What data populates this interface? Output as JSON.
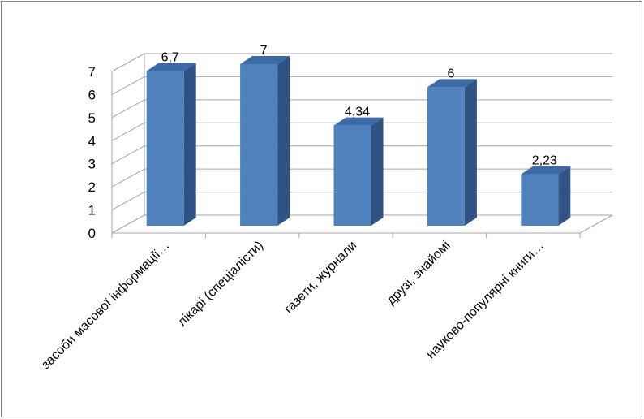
{
  "chart_data": {
    "type": "bar",
    "style": "3d-column",
    "categories": [
      "засоби масової інформації…",
      "лікарі (спеціалісти)",
      "газети, журнали",
      "друзі, знайомі",
      "науково-популярні книги…"
    ],
    "values": [
      6.7,
      7,
      4.34,
      6,
      2.23
    ],
    "data_labels": [
      "6,7",
      "7",
      "4,34",
      "6",
      "2,23"
    ],
    "ylim": [
      0,
      7
    ],
    "yticks": [
      "0",
      "1",
      "2",
      "3",
      "4",
      "5",
      "6",
      "7"
    ],
    "grid": true,
    "legend": "none",
    "title": "",
    "xlabel": "",
    "ylabel": "",
    "colors": {
      "bar_front": "#4f81bd",
      "bar_side": "#2f5383",
      "bar_top": "#3b6aa6",
      "grid": "#a6a6a6",
      "frame": "#7f7f7f"
    }
  }
}
